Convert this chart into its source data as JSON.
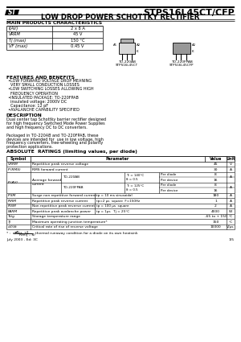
{
  "title_part": "STPS16L45CT/CFP",
  "title_desc": "LOW DROP POWER SCHOTTKY RECTIFIER",
  "main_chars_title": "MAIN PRODUCTS CHARACTERISTICS",
  "main_chars": [
    [
      "I(AV)",
      "2 x 8 A"
    ],
    [
      "VRRM",
      "45 V"
    ],
    [
      "Tj (max)",
      "150 °C"
    ],
    [
      "VF (max)",
      "0.45 V"
    ]
  ],
  "features_title": "FEATURES AND BENEFITS",
  "feat_lines": [
    [
      true,
      "LOW FORWARD VOLTAGE DROP MEANING"
    ],
    [
      false,
      "VERY SMALL CONDUCTION LOSSES"
    ],
    [
      true,
      "LOW SWITCHING LOSSES ALLOWING HIGH"
    ],
    [
      false,
      "FREQUENCY OPERATION"
    ],
    [
      true,
      "INSULATED PACKAGE: TO-220FPAB"
    ],
    [
      false,
      "insulated voltage: 2000V DC"
    ],
    [
      false,
      "Capacitance: 12 pF"
    ],
    [
      true,
      "AVALANCHE CAPABILITY SPECIFIED"
    ]
  ],
  "desc_title": "DESCRIPTION",
  "desc_lines": [
    "Dual center tap Schottky barrier rectifier designed",
    "for high frequency Switched Mode Power Supplies",
    "and high frequency DC to DC converters.",
    "",
    "Packaged in TO-220AB and TO-220FPAB, these",
    "devices are intended for  use in low voltage, high",
    "frequency converters, free-wheeling and polarity",
    "protection applications."
  ],
  "abs_title": "ABSOLUTE  RATINGS (limiting values, per diode)",
  "footer_left": "July 2003 - Ed: 3C",
  "footer_right": "1/5",
  "bg_color": "#ffffff"
}
